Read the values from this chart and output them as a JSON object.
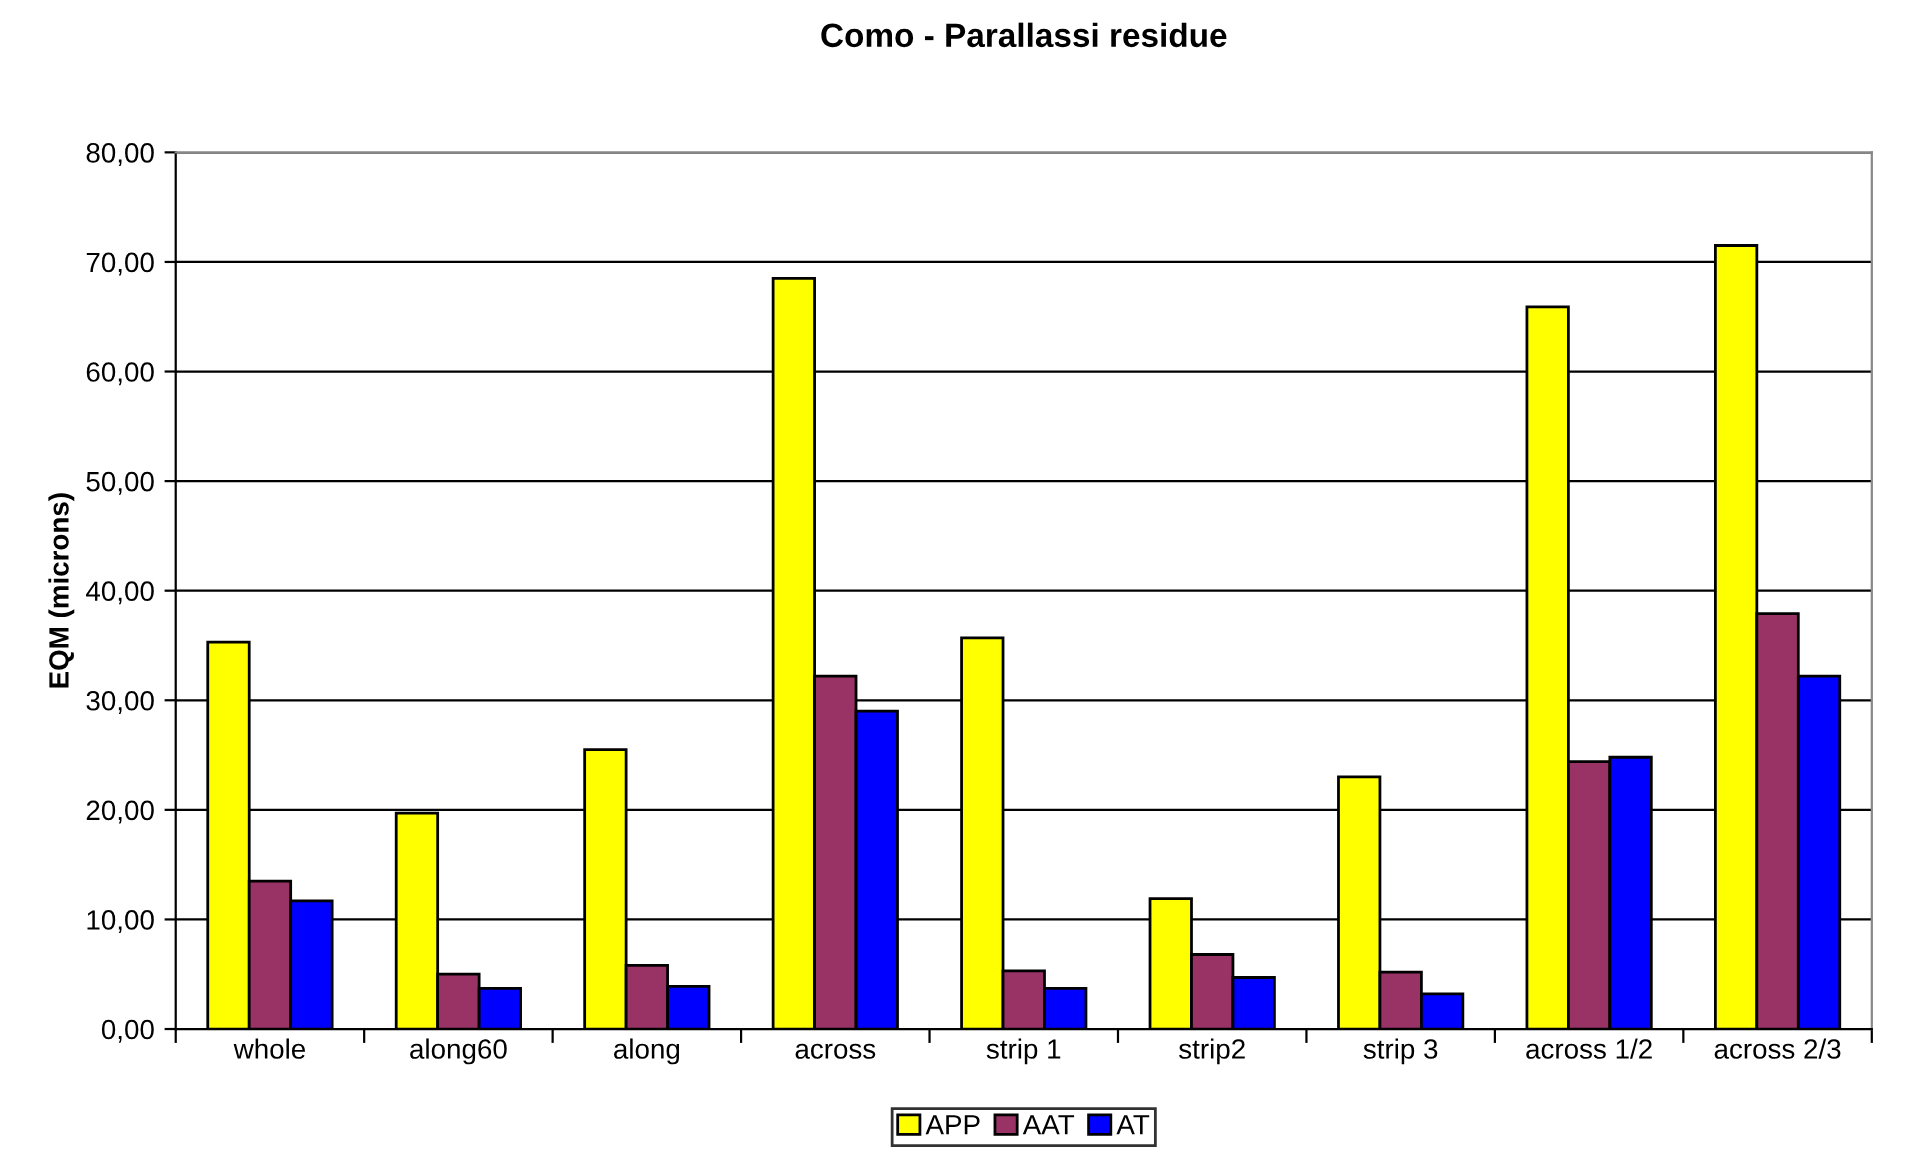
{
  "chart_data": {
    "type": "bar",
    "title": "Como - Parallassi residue",
    "ylabel": "EQM (microns)",
    "categories": [
      "whole",
      "along60",
      "along",
      "across",
      "strip 1",
      "strip2",
      "strip 3",
      "across 1/2",
      "across 2/3"
    ],
    "series": [
      {
        "name": "APP",
        "color": "#ffff00",
        "values": [
          35.3,
          19.7,
          25.5,
          68.5,
          35.7,
          11.9,
          23.0,
          65.9,
          71.5
        ]
      },
      {
        "name": "AAT",
        "color": "#993366",
        "values": [
          13.5,
          5.0,
          5.8,
          32.2,
          5.3,
          6.8,
          5.2,
          24.4,
          37.9
        ]
      },
      {
        "name": "AT",
        "color": "#0000ff",
        "values": [
          11.7,
          3.7,
          3.9,
          29.0,
          3.7,
          4.7,
          3.2,
          24.8,
          32.2
        ]
      }
    ],
    "ylim": [
      0,
      80
    ],
    "yticks": [
      {
        "value": 0,
        "label": "0,00"
      },
      {
        "value": 10,
        "label": "10,00"
      },
      {
        "value": 20,
        "label": "20,00"
      },
      {
        "value": 30,
        "label": "30,00"
      },
      {
        "value": 40,
        "label": "40,00"
      },
      {
        "value": 50,
        "label": "50,00"
      },
      {
        "value": 60,
        "label": "60,00"
      },
      {
        "value": 70,
        "label": "70,00"
      },
      {
        "value": 80,
        "label": "80,00"
      }
    ],
    "grid": "y",
    "legend": "bottom"
  }
}
